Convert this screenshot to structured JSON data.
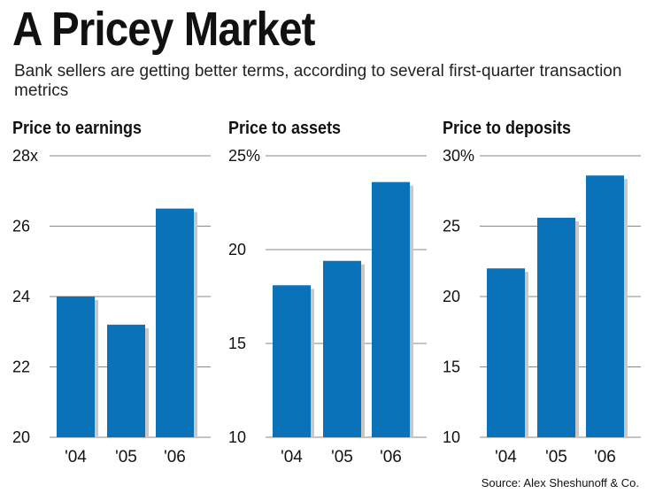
{
  "title": "A Pricey Market",
  "subtitle": "Bank sellers are getting better terms, according to several first-quarter transaction metrics",
  "source": "Source: Alex Sheshunoff & Co.",
  "colors": {
    "bar": "#0a72b8",
    "shadow": "#c8c8c8",
    "grid": "#888888"
  },
  "chart_data": [
    {
      "type": "bar",
      "title": "Price to earnings",
      "categories": [
        "'04",
        "'05",
        "'06"
      ],
      "values": [
        24.0,
        23.2,
        26.5
      ],
      "ylim": [
        20,
        28
      ],
      "ticks": [
        20,
        22,
        24,
        26,
        28
      ],
      "tick_labels": [
        "20",
        "22",
        "24",
        "26",
        "28x"
      ],
      "grid": true
    },
    {
      "type": "bar",
      "title": "Price to assets",
      "categories": [
        "'04",
        "'05",
        "'06"
      ],
      "values": [
        18.1,
        19.4,
        23.6
      ],
      "ylim": [
        10,
        25
      ],
      "ticks": [
        10,
        15,
        20,
        25
      ],
      "tick_labels": [
        "10",
        "15",
        "20",
        "25%"
      ],
      "grid": true
    },
    {
      "type": "bar",
      "title": "Price to deposits",
      "categories": [
        "'04",
        "'05",
        "'06"
      ],
      "values": [
        22.0,
        25.6,
        28.6
      ],
      "ylim": [
        10,
        30
      ],
      "ticks": [
        10,
        15,
        20,
        25,
        30
      ],
      "tick_labels": [
        "10",
        "15",
        "20",
        "25",
        "30%"
      ],
      "grid": true
    }
  ]
}
